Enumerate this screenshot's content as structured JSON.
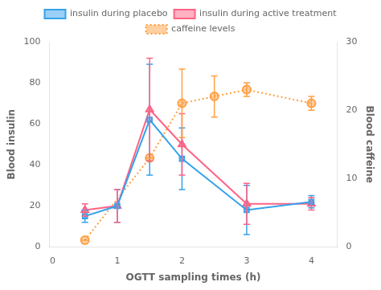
{
  "chart_data": {
    "type": "line",
    "x_label": "OGTT sampling times (h)",
    "y_label": "Blood insulin",
    "y2_label": "Blood caffeine",
    "xlim": [
      -0.05,
      4.4
    ],
    "xticks": [
      0,
      1,
      2,
      3,
      4
    ],
    "ylim": [
      0,
      100
    ],
    "yticks": [
      0,
      20,
      40,
      60,
      80,
      100
    ],
    "y2lim": [
      0,
      30
    ],
    "y2ticks": [
      0,
      10,
      20,
      30
    ],
    "grid": false,
    "legend": "top",
    "series": [
      {
        "name": "insulin during placebo",
        "x": [
          0.5,
          1.0,
          1.5,
          2.0,
          3.0,
          4.0
        ],
        "values": [
          15,
          20,
          62,
          43,
          18,
          22
        ],
        "errors": [
          3,
          8,
          27,
          15,
          12,
          3
        ],
        "marker": "square",
        "line_style": "solid"
      },
      {
        "name": "insulin during active treatment",
        "x": [
          0.5,
          1.0,
          1.5,
          2.0,
          3.0,
          4.0
        ],
        "values": [
          18,
          20,
          67,
          50,
          21,
          21
        ],
        "errors": [
          3,
          8,
          25,
          15,
          10,
          3
        ],
        "marker": "triangle",
        "line_style": "solid"
      },
      {
        "name": "caffeine levels",
        "x": [
          0.5,
          1.5,
          2.0,
          2.5,
          3.0,
          4.0
        ],
        "values": [
          1,
          13,
          21,
          22,
          23,
          21
        ],
        "errors": [
          0,
          0,
          5,
          3,
          1,
          1
        ],
        "marker": "circle",
        "line_style": "dotted",
        "axis": "y2"
      }
    ]
  }
}
